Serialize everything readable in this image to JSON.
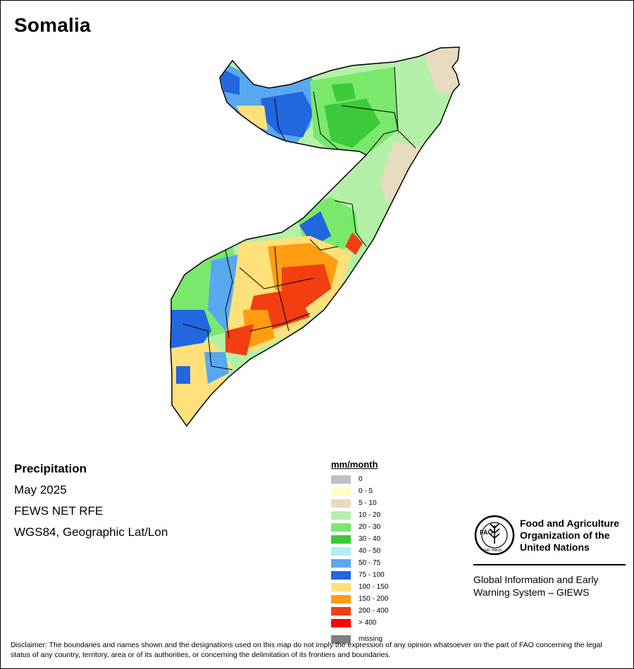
{
  "map": {
    "title": "Somalia"
  },
  "info": {
    "variable": "Precipitation",
    "period": "May 2025",
    "source": "FEWS NET RFE",
    "projection": "WGS84, Geographic Lat/Lon"
  },
  "legend": {
    "unit": "mm/month",
    "classes": [
      {
        "label": "0",
        "color": "#c0c0c0"
      },
      {
        "label": "0 - 5",
        "color": "#ffffc6"
      },
      {
        "label": "5 - 10",
        "color": "#e8dcc0"
      },
      {
        "label": "10 - 20",
        "color": "#b4f0a8"
      },
      {
        "label": "20 - 30",
        "color": "#7ae86c"
      },
      {
        "label": "30 - 40",
        "color": "#3cc93a"
      },
      {
        "label": "40 - 50",
        "color": "#b4ecf8"
      },
      {
        "label": "50 - 75",
        "color": "#58a8f0"
      },
      {
        "label": "75 - 100",
        "color": "#2266e0"
      },
      {
        "label": "100 - 150",
        "color": "#ffe07a"
      },
      {
        "label": "150 - 200",
        "color": "#ff9c12"
      },
      {
        "label": "200 - 400",
        "color": "#f23e10"
      },
      {
        "label": "> 400",
        "color": "#ff0000"
      },
      {
        "label": "missing",
        "color": "#808080"
      }
    ]
  },
  "fao": {
    "logo_text": "FAO",
    "logo_motto": "FIAT PANIS",
    "name_line1": "Food and Agriculture",
    "name_line2": "Organization of the",
    "name_line3": "United Nations",
    "giews_line1": "Global Information and Early",
    "giews_line2": "Warning System – GIEWS"
  },
  "disclaimer": "Disclaimer: The boundaries and names shown and the designations used on this map do not imply the expression of any opinion whatsoever on the part of FAO concerning the legal status of any country, territory, area or of its authorities, or concerning the delimitation of its frontiers and boundaries."
}
